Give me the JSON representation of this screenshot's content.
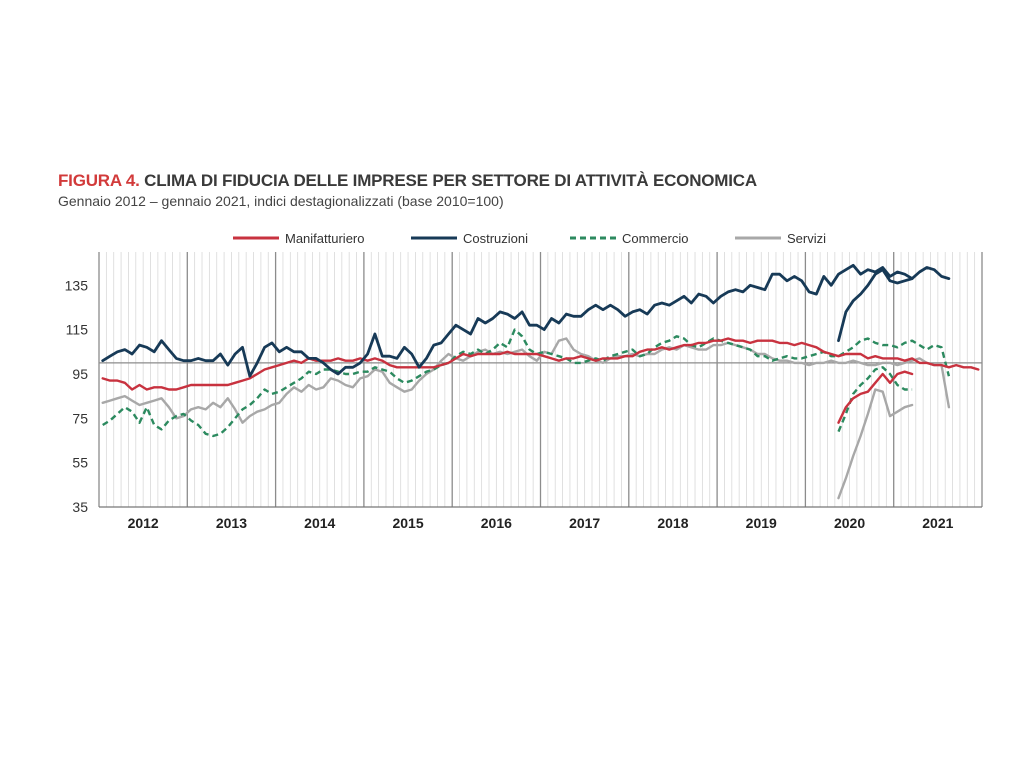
{
  "header": {
    "figure_label": "FIGURA 4.",
    "title": "CLIMA DI FIDUCIA DELLE IMPRESE PER SETTORE DI ATTIVITÀ ECONOMICA",
    "subtitle": "Gennaio 2012 – gennaio  2021, indici destagionalizzati (base 2010=100)"
  },
  "chart_data": {
    "type": "line",
    "title": "CLIMA DI FIDUCIA DELLE IMPRESE PER SETTORE DI ATTIVITÀ ECONOMICA",
    "subtitle": "Gennaio 2012 – gennaio  2021, indici destagionalizzati (base 2010=100)",
    "xlabel": "",
    "ylabel": "",
    "ylim": [
      35,
      150
    ],
    "yticks": [
      35,
      55,
      75,
      95,
      115,
      135
    ],
    "reference_line": 100,
    "x_categories": [
      "2012",
      "2013",
      "2014",
      "2015",
      "2016",
      "2017",
      "2018",
      "2019",
      "2020",
      "2021"
    ],
    "x_range": [
      "2012-01",
      "2021-12"
    ],
    "grid": "vertical monthly lines, horizontal line at 100",
    "legend_position": "top",
    "gap_note": "series interrupted in April 2020",
    "series": [
      {
        "name": "Manifatturiero",
        "color": "#c8323f",
        "style": "solid",
        "segments": [
          {
            "start": "2012-01",
            "values": [
              93,
              92,
              92,
              91,
              88,
              90,
              88,
              89,
              89,
              88,
              88,
              89,
              90,
              90,
              90,
              90,
              90,
              90,
              91,
              92,
              93,
              95,
              97,
              98,
              99,
              100,
              101,
              100,
              102,
              101,
              101,
              101,
              102,
              101,
              101,
              102,
              101,
              102,
              101,
              99,
              98,
              98,
              98,
              98,
              98,
              98,
              99,
              100,
              102,
              104,
              103,
              104,
              104,
              104,
              104,
              105,
              104,
              104,
              104,
              104,
              103,
              102,
              101,
              102,
              102,
              103,
              102,
              101,
              102,
              102,
              102,
              103,
              103,
              105,
              106,
              106,
              107,
              106,
              107,
              108,
              108,
              109,
              109,
              110,
              110,
              111,
              110,
              110,
              109,
              110,
              110,
              110,
              109,
              109,
              108,
              109,
              108,
              107,
              105,
              104,
              103,
              104,
              104,
              104,
              102,
              103,
              102,
              102,
              102,
              101,
              102,
              100,
              100,
              99,
              99,
              98,
              99,
              98,
              98,
              97
            ]
          },
          {
            "start": "2020-05",
            "values": [
              73,
              80,
              84,
              86,
              87,
              91,
              95,
              91,
              95,
              96,
              95
            ]
          }
        ]
      },
      {
        "name": "Costruzioni",
        "color": "#173a57",
        "style": "solid",
        "segments": [
          {
            "start": "2012-01",
            "values": [
              101,
              103,
              105,
              106,
              104,
              108,
              107,
              105,
              110,
              106,
              102,
              101,
              101,
              102,
              101,
              101,
              104,
              99,
              104,
              107,
              94,
              100,
              107,
              109,
              105,
              107,
              105,
              105,
              102,
              102,
              100,
              97,
              95,
              98,
              98,
              100,
              104,
              113,
              103,
              103,
              102,
              107,
              104,
              98,
              102,
              108,
              109,
              113,
              117,
              115,
              113,
              120,
              118,
              120,
              123,
              122,
              120,
              123,
              117,
              117,
              115,
              120,
              118,
              122,
              121,
              121,
              124,
              126,
              124,
              126,
              124,
              121,
              123,
              124,
              122,
              126,
              127,
              126,
              128,
              130,
              127,
              131,
              130,
              127,
              130,
              132,
              133,
              132,
              135,
              134,
              133,
              140,
              140,
              137,
              139,
              137,
              132,
              131,
              139,
              135,
              140,
              142,
              144,
              140,
              142,
              141,
              143,
              139,
              141,
              140,
              138,
              141,
              143,
              142,
              139,
              138
            ]
          },
          {
            "start": "2020-05",
            "values": [
              110,
              123,
              128,
              131,
              135,
              140,
              142,
              137,
              136,
              137,
              138
            ]
          }
        ]
      },
      {
        "name": "Commercio",
        "color": "#2c8a5f",
        "style": "dashed",
        "segments": [
          {
            "start": "2012-01",
            "values": [
              72,
              74,
              77,
              80,
              78,
              73,
              80,
              72,
              70,
              74,
              76,
              77,
              74,
              72,
              68,
              67,
              68,
              71,
              75,
              79,
              81,
              84,
              88,
              86,
              87,
              89,
              91,
              93,
              96,
              95,
              97,
              97,
              96,
              95,
              95,
              96,
              96,
              98,
              97,
              96,
              93,
              91,
              92,
              94,
              96,
              97,
              99,
              100,
              103,
              105,
              104,
              106,
              104,
              106,
              109,
              107,
              115,
              112,
              106,
              104,
              105,
              104,
              103,
              102,
              100,
              100,
              101,
              102,
              101,
              103,
              104,
              105,
              106,
              103,
              104,
              107,
              109,
              110,
              112,
              111,
              108,
              107,
              109,
              111,
              110,
              109,
              108,
              107,
              106,
              103,
              103,
              101,
              102,
              103,
              102,
              102,
              103,
              104,
              105,
              103,
              103,
              105,
              107,
              110,
              111,
              109,
              108,
              108,
              107,
              109,
              110,
              108,
              106,
              108,
              107,
              94
            ]
          },
          {
            "start": "2020-05",
            "values": [
              69,
              77,
              86,
              90,
              93,
              97,
              98,
              95,
              90,
              88,
              88
            ]
          }
        ]
      },
      {
        "name": "Servizi",
        "color": "#a8a8a8",
        "style": "solid",
        "segments": [
          {
            "start": "2012-01",
            "values": [
              82,
              83,
              84,
              85,
              83,
              81,
              82,
              83,
              84,
              80,
              75,
              76,
              79,
              80,
              79,
              82,
              80,
              84,
              79,
              73,
              76,
              78,
              79,
              81,
              82,
              86,
              89,
              87,
              90,
              88,
              89,
              93,
              92,
              90,
              89,
              93,
              94,
              97,
              96,
              91,
              89,
              87,
              88,
              92,
              95,
              97,
              101,
              104,
              102,
              101,
              103,
              105,
              106,
              104,
              105,
              104,
              105,
              106,
              103,
              101,
              105,
              104,
              110,
              111,
              106,
              104,
              103,
              101,
              100,
              102,
              103,
              103,
              104,
              103,
              104,
              104,
              106,
              107,
              106,
              108,
              107,
              106,
              106,
              108,
              108,
              109,
              108,
              107,
              106,
              104,
              104,
              102,
              101,
              101,
              100,
              100,
              99,
              100,
              100,
              101,
              100,
              100,
              101,
              100,
              99,
              99,
              100,
              100,
              99,
              100,
              101,
              102,
              100,
              99,
              99,
              80
            ]
          },
          {
            "start": "2020-05",
            "values": [
              39,
              48,
              58,
              67,
              77,
              88,
              87,
              76,
              78,
              80,
              81
            ]
          }
        ]
      }
    ]
  }
}
